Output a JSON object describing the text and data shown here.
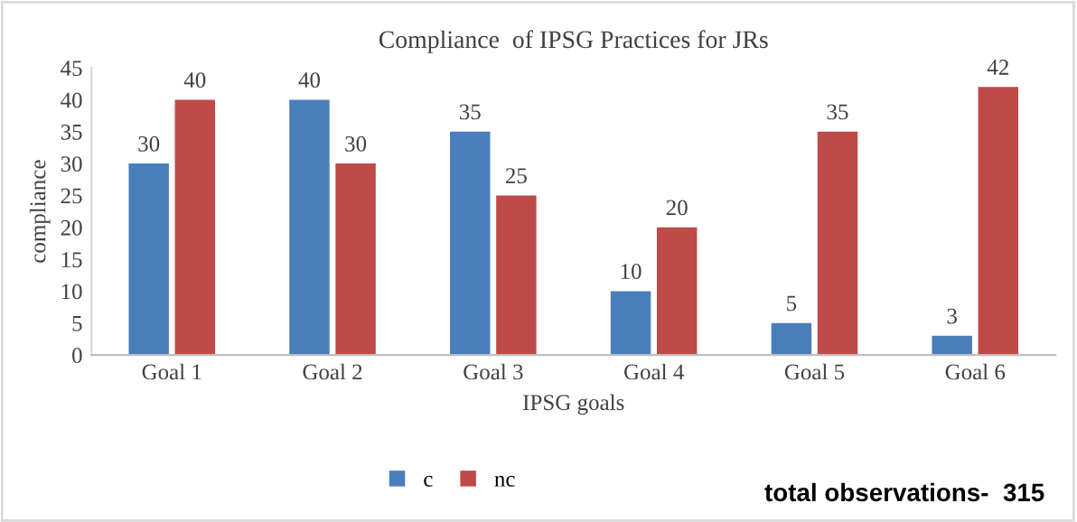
{
  "chart_data": {
    "type": "bar",
    "title": "Compliance  of IPSG Practices for JRs",
    "xlabel": "IPSG goals",
    "ylabel": "compliance",
    "categories": [
      "Goal 1",
      "Goal 2",
      "Goal 3",
      "Goal 4",
      "Goal 5",
      "Goal 6"
    ],
    "series": [
      {
        "name": "c",
        "color": "#4a7ebb",
        "values": [
          30,
          40,
          35,
          10,
          5,
          3
        ]
      },
      {
        "name": "nc",
        "color": "#be4b48",
        "values": [
          40,
          30,
          25,
          20,
          35,
          42
        ]
      }
    ],
    "ylim": [
      0,
      45
    ],
    "yticks": [
      0,
      5,
      10,
      15,
      20,
      25,
      30,
      35,
      40,
      45
    ],
    "grid": false,
    "legend": "bottom",
    "data_labels": true,
    "annotations": [
      "total observations-  315"
    ]
  }
}
